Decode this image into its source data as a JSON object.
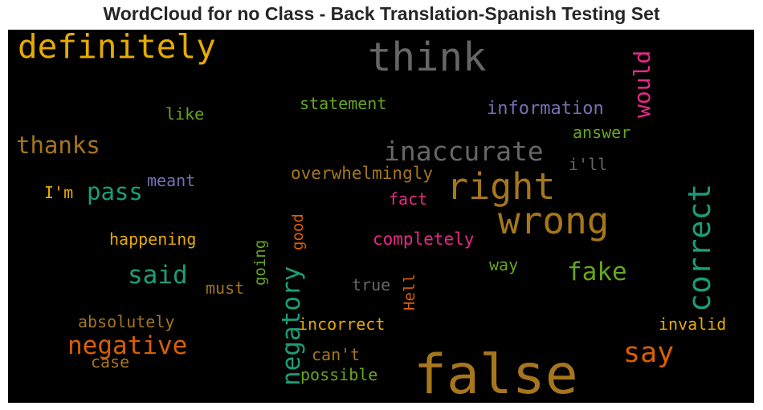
{
  "title": "WordCloud for no Class - Back Translation-Spanish Testing Set",
  "chart_data": {
    "type": "wordcloud",
    "background": "#000000",
    "colormap": [
      "#d95f02",
      "#7570b3",
      "#e7298a",
      "#66a61e",
      "#e6ab02",
      "#a6761d",
      "#666666",
      "#1b9e77"
    ],
    "words": [
      {
        "text": "false",
        "weight": 1.0,
        "color": "#a6761d",
        "orientation": "horizontal"
      },
      {
        "text": "think",
        "weight": 0.72,
        "color": "#666666",
        "orientation": "horizontal"
      },
      {
        "text": "wrong",
        "weight": 0.68,
        "color": "#a6761d",
        "orientation": "horizontal"
      },
      {
        "text": "right",
        "weight": 0.66,
        "color": "#a6761d",
        "orientation": "horizontal"
      },
      {
        "text": "definitely",
        "weight": 0.6,
        "color": "#e6ab02",
        "orientation": "horizontal"
      },
      {
        "text": "correct",
        "weight": 0.56,
        "color": "#1b9e77",
        "orientation": "vertical"
      },
      {
        "text": "say",
        "weight": 0.52,
        "color": "#d95f02",
        "orientation": "horizontal"
      },
      {
        "text": "inaccurate",
        "weight": 0.48,
        "color": "#666666",
        "orientation": "horizontal"
      },
      {
        "text": "negatory",
        "weight": 0.46,
        "color": "#1b9e77",
        "orientation": "vertical"
      },
      {
        "text": "said",
        "weight": 0.46,
        "color": "#1b9e77",
        "orientation": "horizontal"
      },
      {
        "text": "negative",
        "weight": 0.46,
        "color": "#d95f02",
        "orientation": "horizontal"
      },
      {
        "text": "fake",
        "weight": 0.45,
        "color": "#66a61e",
        "orientation": "horizontal"
      },
      {
        "text": "thanks",
        "weight": 0.43,
        "color": "#a6761d",
        "orientation": "horizontal"
      },
      {
        "text": "pass",
        "weight": 0.43,
        "color": "#1b9e77",
        "orientation": "horizontal"
      },
      {
        "text": "would",
        "weight": 0.41,
        "color": "#e7298a",
        "orientation": "vertical"
      },
      {
        "text": "information",
        "weight": 0.33,
        "color": "#7570b3",
        "orientation": "horizontal"
      },
      {
        "text": "overwhelmingly",
        "weight": 0.31,
        "color": "#a6761d",
        "orientation": "horizontal"
      },
      {
        "text": "completely",
        "weight": 0.31,
        "color": "#e7298a",
        "orientation": "horizontal"
      },
      {
        "text": "statement",
        "weight": 0.3,
        "color": "#66a61e",
        "orientation": "horizontal"
      },
      {
        "text": "happening",
        "weight": 0.3,
        "color": "#e6ab02",
        "orientation": "horizontal"
      },
      {
        "text": "absolutely",
        "weight": 0.3,
        "color": "#a6761d",
        "orientation": "horizontal"
      },
      {
        "text": "incorrect",
        "weight": 0.3,
        "color": "#e6ab02",
        "orientation": "horizontal"
      },
      {
        "text": "invalid",
        "weight": 0.3,
        "color": "#e6ab02",
        "orientation": "horizontal"
      },
      {
        "text": "possible",
        "weight": 0.3,
        "color": "#66a61e",
        "orientation": "horizontal"
      },
      {
        "text": "like",
        "weight": 0.29,
        "color": "#66a61e",
        "orientation": "horizontal"
      },
      {
        "text": "answer",
        "weight": 0.29,
        "color": "#66a61e",
        "orientation": "horizontal"
      },
      {
        "text": "i'll",
        "weight": 0.29,
        "color": "#666666",
        "orientation": "horizontal"
      },
      {
        "text": "meant",
        "weight": 0.29,
        "color": "#7570b3",
        "orientation": "horizontal"
      },
      {
        "text": "I'm",
        "weight": 0.29,
        "color": "#e6ab02",
        "orientation": "horizontal"
      },
      {
        "text": "fact",
        "weight": 0.29,
        "color": "#e7298a",
        "orientation": "horizontal"
      },
      {
        "text": "must",
        "weight": 0.29,
        "color": "#a6761d",
        "orientation": "horizontal"
      },
      {
        "text": "true",
        "weight": 0.29,
        "color": "#666666",
        "orientation": "horizontal"
      },
      {
        "text": "way",
        "weight": 0.29,
        "color": "#66a61e",
        "orientation": "horizontal"
      },
      {
        "text": "can't",
        "weight": 0.29,
        "color": "#a6761d",
        "orientation": "horizontal"
      },
      {
        "text": "case",
        "weight": 0.29,
        "color": "#a6761d",
        "orientation": "horizontal"
      },
      {
        "text": "good",
        "weight": 0.28,
        "color": "#d95f02",
        "orientation": "vertical"
      },
      {
        "text": "going",
        "weight": 0.28,
        "color": "#66a61e",
        "orientation": "vertical"
      },
      {
        "text": "Hell",
        "weight": 0.28,
        "color": "#d95f02",
        "orientation": "vertical"
      }
    ]
  }
}
